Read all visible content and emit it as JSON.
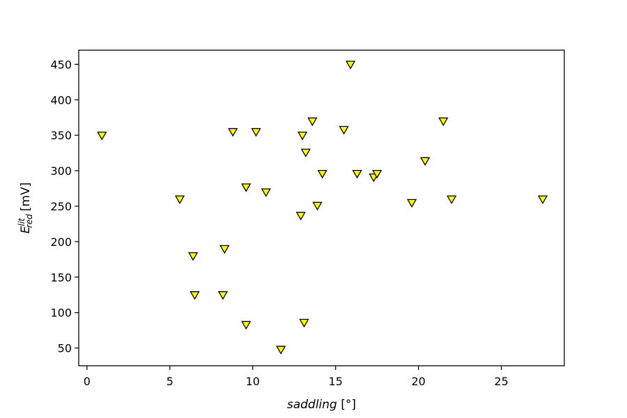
{
  "chart_data": {
    "type": "scatter",
    "xlabel": "saddling [°]",
    "ylabel": "E_red^lit [mV]",
    "ylabel_parts": {
      "base": "E",
      "sup": "lit",
      "sub": "red",
      "unit": "[mV]"
    },
    "xlim": [
      -0.5,
      28.8
    ],
    "ylim": [
      25,
      470
    ],
    "xticks": [
      0,
      5,
      10,
      15,
      20,
      25
    ],
    "yticks": [
      50,
      100,
      150,
      200,
      250,
      300,
      350,
      400,
      450
    ],
    "grid": false,
    "legend": false,
    "marker": "triangle-down",
    "marker_color": "#ffff00",
    "marker_edge_color": "#000000",
    "points": [
      {
        "x": 0.9,
        "y": 350
      },
      {
        "x": 5.6,
        "y": 260
      },
      {
        "x": 6.4,
        "y": 180
      },
      {
        "x": 6.5,
        "y": 125
      },
      {
        "x": 8.2,
        "y": 125
      },
      {
        "x": 8.3,
        "y": 190
      },
      {
        "x": 8.8,
        "y": 355
      },
      {
        "x": 9.6,
        "y": 83
      },
      {
        "x": 9.6,
        "y": 277
      },
      {
        "x": 10.2,
        "y": 355
      },
      {
        "x": 10.8,
        "y": 270
      },
      {
        "x": 11.7,
        "y": 48
      },
      {
        "x": 12.9,
        "y": 237
      },
      {
        "x": 13.0,
        "y": 350
      },
      {
        "x": 13.1,
        "y": 86
      },
      {
        "x": 13.2,
        "y": 326
      },
      {
        "x": 13.6,
        "y": 370
      },
      {
        "x": 13.9,
        "y": 251
      },
      {
        "x": 14.2,
        "y": 296
      },
      {
        "x": 15.5,
        "y": 358
      },
      {
        "x": 15.9,
        "y": 450
      },
      {
        "x": 16.3,
        "y": 296
      },
      {
        "x": 17.3,
        "y": 291
      },
      {
        "x": 17.5,
        "y": 296
      },
      {
        "x": 19.6,
        "y": 255
      },
      {
        "x": 20.4,
        "y": 314
      },
      {
        "x": 21.5,
        "y": 370
      },
      {
        "x": 22.0,
        "y": 260
      },
      {
        "x": 27.5,
        "y": 260
      }
    ]
  }
}
